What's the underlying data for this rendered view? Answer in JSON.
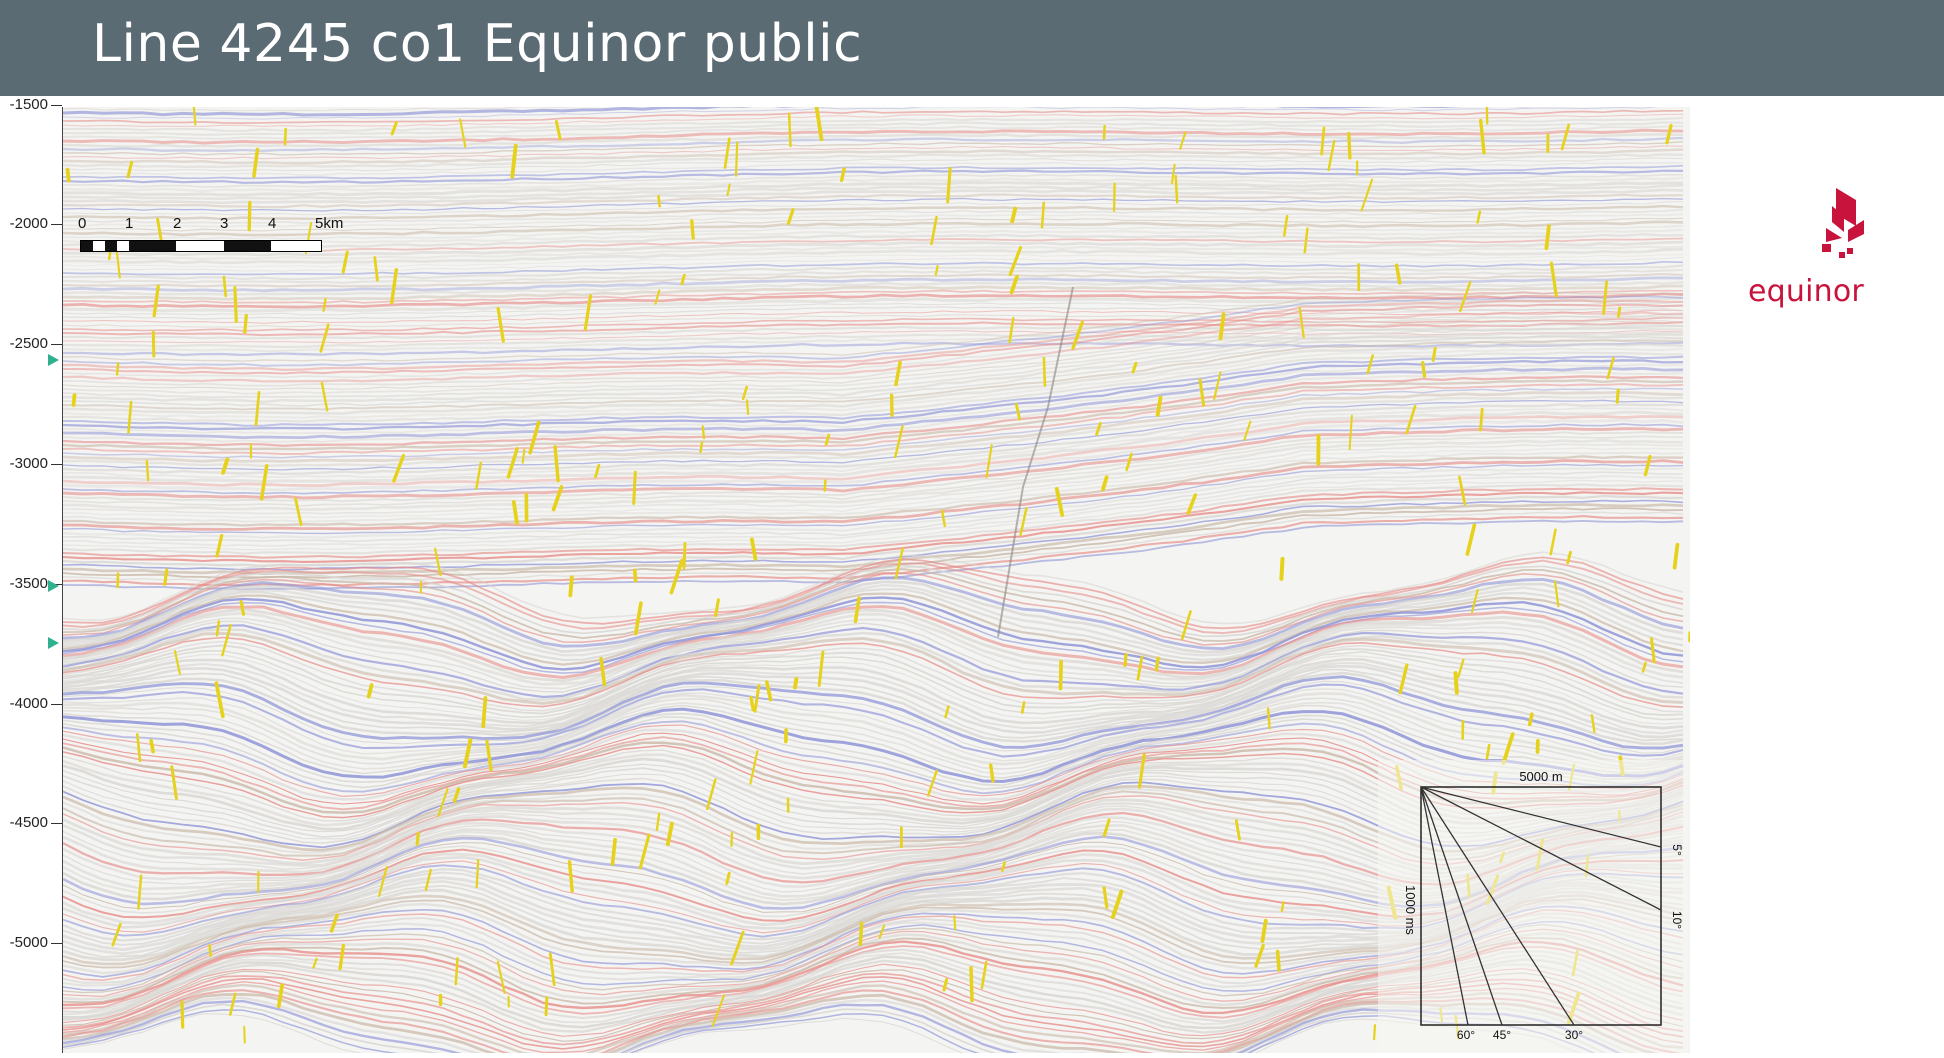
{
  "header": {
    "title": "Line 4245 co1 Equinor public"
  },
  "depth_axis": {
    "ticks": [
      "-1500",
      "-2000",
      "-2500",
      "-3000",
      "-3500",
      "-4000",
      "-4500",
      "-5000"
    ],
    "tick_values": [
      -1500,
      -2000,
      -2500,
      -3000,
      -3500,
      -4000,
      -4500,
      -5000
    ],
    "markers": [
      "green-triangle",
      "green-triangle",
      "green-triangle"
    ]
  },
  "scale_bar": {
    "labels": [
      "0",
      "1",
      "2",
      "3",
      "4",
      "5km"
    ]
  },
  "angle_inset": {
    "horizontal_label": "5000 m",
    "vertical_label": "1000 ms",
    "angles": [
      "5°",
      "10°",
      "30°",
      "45°",
      "60°"
    ]
  },
  "logo": {
    "text": "equinor",
    "color": "#c8143c"
  },
  "colors": {
    "header_bg": "#5b6b74",
    "positive_reflector": "#e58a86",
    "negative_reflector": "#8e93d6",
    "fault_highlight": "#e6d21a",
    "marker": "#2fb08f"
  }
}
